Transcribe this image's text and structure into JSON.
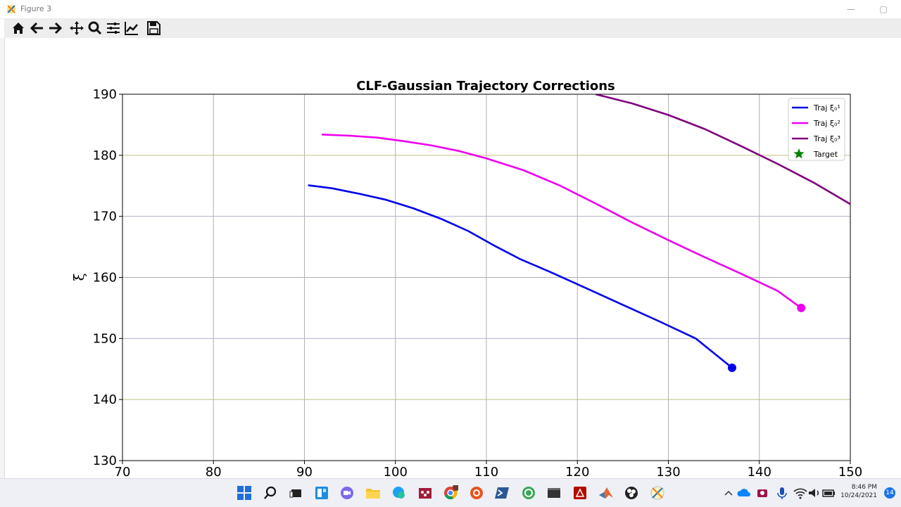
{
  "window": {
    "title": "Figure 3"
  },
  "toolbar": {
    "buttons": [
      {
        "name": "home-icon",
        "label": "Home"
      },
      {
        "name": "back-icon",
        "label": "Back"
      },
      {
        "name": "forward-icon",
        "label": "Forward"
      },
      {
        "name": "pan-icon",
        "label": "Pan"
      },
      {
        "name": "zoom-icon",
        "label": "Zoom"
      },
      {
        "name": "subplots-icon",
        "label": "Configure subplots"
      },
      {
        "name": "axes-icon",
        "label": "Edit axis"
      },
      {
        "name": "save-icon",
        "label": "Save"
      }
    ]
  },
  "chart_data": {
    "type": "line",
    "title": "CLF-Gaussian Trajectory Corrections",
    "xlabel": "",
    "ylabel": "ξ̇",
    "xlim": [
      70,
      150
    ],
    "ylim": [
      130,
      190
    ],
    "xticks": [
      "70",
      "80",
      "90",
      "100",
      "110",
      "120",
      "130",
      "140",
      "150"
    ],
    "yticks": [
      "130",
      "140",
      "150",
      "160",
      "170",
      "180",
      "190"
    ],
    "grid": true,
    "legend_position": "top-right",
    "legend": [
      {
        "label": "Traj ξ₀¹",
        "color": "#0000ee",
        "kind": "line"
      },
      {
        "label": "Traj ξ₀²",
        "color": "#ee00ee",
        "kind": "line"
      },
      {
        "label": "Traj ξ₀³",
        "color": "#800080",
        "kind": "line"
      },
      {
        "label": "Target",
        "color": "#008000",
        "kind": "star"
      }
    ],
    "series": [
      {
        "name": "Traj ξ₀¹",
        "color": "#0000ee",
        "x": [
          90.4,
          93,
          96,
          99,
          102,
          105,
          108,
          111,
          113.7,
          117,
          121,
          125,
          129,
          133,
          137
        ],
        "y": [
          175.1,
          174.6,
          173.7,
          172.7,
          171.3,
          169.6,
          167.6,
          165.1,
          163.0,
          160.9,
          158.2,
          155.5,
          152.8,
          150.0,
          145.2
        ],
        "end_marker": true
      },
      {
        "name": "Traj ξ₀²",
        "color": "#ee00ee",
        "x": [
          91.9,
          95,
          98,
          101,
          104,
          107,
          110,
          114,
          118,
          122,
          126,
          130,
          134,
          138,
          142,
          144.6
        ],
        "y": [
          183.4,
          183.2,
          182.9,
          182.3,
          181.6,
          180.7,
          179.5,
          177.6,
          175.1,
          172.1,
          169.0,
          166.1,
          163.3,
          160.6,
          157.8,
          155.0
        ],
        "end_marker": true
      },
      {
        "name": "Traj ξ₀³",
        "color": "#800080",
        "x": [
          122,
          126,
          130,
          134,
          138,
          142,
          146,
          150
        ],
        "y": [
          190.0,
          188.5,
          186.6,
          184.3,
          181.5,
          178.6,
          175.5,
          172.0
        ],
        "end_marker": false
      }
    ]
  },
  "taskbar": {
    "clock_time": "8:46 PM",
    "clock_date": "10/24/2021",
    "notifications": "14"
  }
}
